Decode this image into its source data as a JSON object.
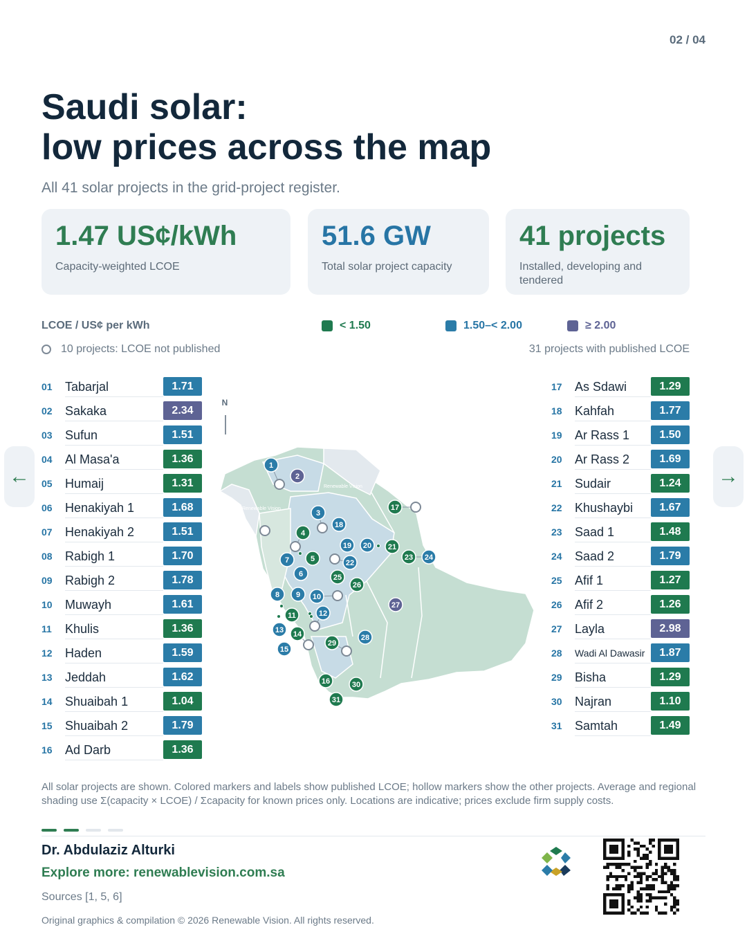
{
  "page": {
    "indicator": "02 / 04"
  },
  "header": {
    "title_line1": "Saudi solar:",
    "title_line2": "low prices across the map",
    "subtitle": "All 41 solar projects in the grid-project register."
  },
  "kpis": [
    {
      "value": "1.47 US¢/kWh",
      "label": "Capacity-weighted LCOE"
    },
    {
      "value": "51.6 GW",
      "label": "Total solar project capacity"
    },
    {
      "value": "41 projects",
      "label": "Installed, developing and tendered"
    }
  ],
  "legend": {
    "title": "LCOE / US¢ per kWh",
    "items": [
      {
        "label": "< 1.50",
        "color": "#1f7a4f"
      },
      {
        "label": "1.50–< 2.00",
        "color": "#2b7ca8"
      },
      {
        "label": "≥ 2.00",
        "color": "#5e6394"
      }
    ],
    "hollow_note": "10 projects: LCOE not published",
    "published_note": "31 projects with published LCOE"
  },
  "projects": [
    {
      "num": "01",
      "name": "Tabarjal",
      "lcoe": "1.71",
      "cls": "b"
    },
    {
      "num": "02",
      "name": "Sakaka",
      "lcoe": "2.34",
      "cls": "p"
    },
    {
      "num": "03",
      "name": "Sufun",
      "lcoe": "1.51",
      "cls": "b"
    },
    {
      "num": "04",
      "name": "Al Masa'a",
      "lcoe": "1.36",
      "cls": "g"
    },
    {
      "num": "05",
      "name": "Humaij",
      "lcoe": "1.31",
      "cls": "g"
    },
    {
      "num": "06",
      "name": "Henakiyah 1",
      "lcoe": "1.68",
      "cls": "b"
    },
    {
      "num": "07",
      "name": "Henakiyah 2",
      "lcoe": "1.51",
      "cls": "b"
    },
    {
      "num": "08",
      "name": "Rabigh 1",
      "lcoe": "1.70",
      "cls": "b"
    },
    {
      "num": "09",
      "name": "Rabigh 2",
      "lcoe": "1.78",
      "cls": "b"
    },
    {
      "num": "10",
      "name": "Muwayh",
      "lcoe": "1.61",
      "cls": "b"
    },
    {
      "num": "11",
      "name": "Khulis",
      "lcoe": "1.36",
      "cls": "g"
    },
    {
      "num": "12",
      "name": "Haden",
      "lcoe": "1.59",
      "cls": "b"
    },
    {
      "num": "13",
      "name": "Jeddah",
      "lcoe": "1.62",
      "cls": "b"
    },
    {
      "num": "14",
      "name": "Shuaibah 1",
      "lcoe": "1.04",
      "cls": "g"
    },
    {
      "num": "15",
      "name": "Shuaibah 2",
      "lcoe": "1.79",
      "cls": "b"
    },
    {
      "num": "16",
      "name": "Ad Darb",
      "lcoe": "1.36",
      "cls": "g"
    },
    {
      "num": "17",
      "name": "As Sdawi",
      "lcoe": "1.29",
      "cls": "g"
    },
    {
      "num": "18",
      "name": "Kahfah",
      "lcoe": "1.77",
      "cls": "b"
    },
    {
      "num": "19",
      "name": "Ar Rass 1",
      "lcoe": "1.50",
      "cls": "b"
    },
    {
      "num": "20",
      "name": "Ar Rass 2",
      "lcoe": "1.69",
      "cls": "b"
    },
    {
      "num": "21",
      "name": "Sudair",
      "lcoe": "1.24",
      "cls": "g"
    },
    {
      "num": "22",
      "name": "Khushaybi",
      "lcoe": "1.67",
      "cls": "b"
    },
    {
      "num": "23",
      "name": "Saad 1",
      "lcoe": "1.48",
      "cls": "g"
    },
    {
      "num": "24",
      "name": "Saad 2",
      "lcoe": "1.79",
      "cls": "b"
    },
    {
      "num": "25",
      "name": "Afif 1",
      "lcoe": "1.27",
      "cls": "g"
    },
    {
      "num": "26",
      "name": "Afif 2",
      "lcoe": "1.26",
      "cls": "g"
    },
    {
      "num": "27",
      "name": "Layla",
      "lcoe": "2.98",
      "cls": "p"
    },
    {
      "num": "28",
      "name": "Wadi Al Dawasir",
      "lcoe": "1.87",
      "cls": "b"
    },
    {
      "num": "29",
      "name": "Bisha",
      "lcoe": "1.29",
      "cls": "g"
    },
    {
      "num": "30",
      "name": "Najran",
      "lcoe": "1.10",
      "cls": "g"
    },
    {
      "num": "31",
      "name": "Samtah",
      "lcoe": "1.49",
      "cls": "g"
    }
  ],
  "map": {
    "north_label": "N",
    "watermark": "Renewable Vision",
    "colors": {
      "green": "#1f7a4f",
      "blue": "#2b7ca8",
      "purple": "#5e6394",
      "land_green": "#c5ded2",
      "land_blue": "#c7dbe6",
      "land_grey": "#e3e9ee"
    }
  },
  "nav": {
    "prev": "←",
    "next": "→"
  },
  "footnote": "All solar projects are shown. Colored markers and labels show published LCOE; hollow markers show the other projects. Average and regional shading use Σ(capacity × LCOE) / Σcapacity for known prices only. Locations are indicative; prices exclude firm supply costs.",
  "footer": {
    "author": "Dr. Abdulaziz Alturki",
    "explore": "Explore more: renewablevision.com.sa",
    "sources": "Sources [1, 5, 6]",
    "copyright": "Original graphics & compilation © 2026 Renewable Vision. All rights reserved."
  }
}
